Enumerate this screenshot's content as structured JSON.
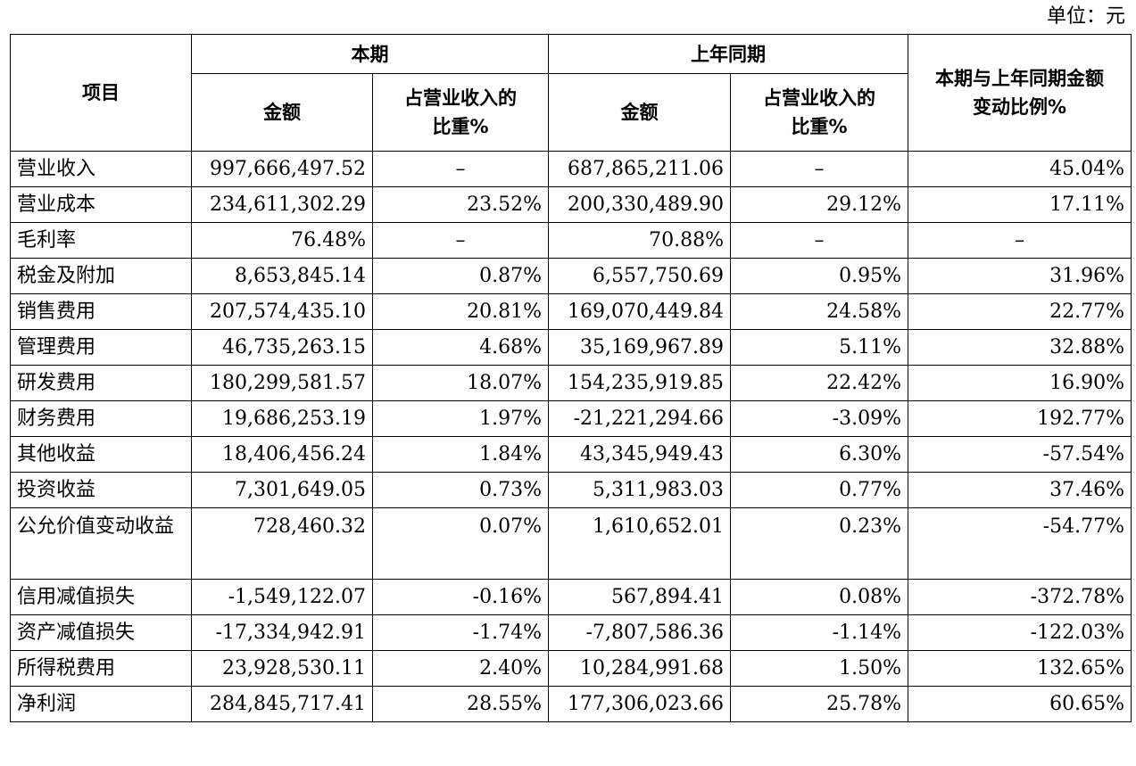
{
  "unit_label": "单位：元",
  "header": {
    "item": "项目",
    "current_period": "本期",
    "prior_period": "上年同期",
    "change": "本期与上年同期金额变动比例%",
    "amount": "金额",
    "share": "占营业收入的比重%"
  },
  "rows": [
    {
      "item": "营业收入",
      "cur_amount": "997,666,497.52",
      "cur_share": "–",
      "prev_amount": "687,865,211.06",
      "prev_share": "–",
      "change": "45.04%"
    },
    {
      "item": "营业成本",
      "cur_amount": "234,611,302.29",
      "cur_share": "23.52%",
      "prev_amount": "200,330,489.90",
      "prev_share": "29.12%",
      "change": "17.11%"
    },
    {
      "item": "毛利率",
      "cur_amount": "76.48%",
      "cur_share": "–",
      "prev_amount": "70.88%",
      "prev_share": "–",
      "change": "–"
    },
    {
      "item": "税金及附加",
      "cur_amount": "8,653,845.14",
      "cur_share": "0.87%",
      "prev_amount": "6,557,750.69",
      "prev_share": "0.95%",
      "change": "31.96%"
    },
    {
      "item": "销售费用",
      "cur_amount": "207,574,435.10",
      "cur_share": "20.81%",
      "prev_amount": "169,070,449.84",
      "prev_share": "24.58%",
      "change": "22.77%"
    },
    {
      "item": "管理费用",
      "cur_amount": "46,735,263.15",
      "cur_share": "4.68%",
      "prev_amount": "35,169,967.89",
      "prev_share": "5.11%",
      "change": "32.88%"
    },
    {
      "item": "研发费用",
      "cur_amount": "180,299,581.57",
      "cur_share": "18.07%",
      "prev_amount": "154,235,919.85",
      "prev_share": "22.42%",
      "change": "16.90%"
    },
    {
      "item": "财务费用",
      "cur_amount": "19,686,253.19",
      "cur_share": "1.97%",
      "prev_amount": "-21,221,294.66",
      "prev_share": "-3.09%",
      "change": "192.77%"
    },
    {
      "item": "其他收益",
      "cur_amount": "18,406,456.24",
      "cur_share": "1.84%",
      "prev_amount": "43,345,949.43",
      "prev_share": "6.30%",
      "change": "-57.54%"
    },
    {
      "item": "投资收益",
      "cur_amount": "7,301,649.05",
      "cur_share": "0.73%",
      "prev_amount": "5,311,983.03",
      "prev_share": "0.77%",
      "change": "37.46%"
    },
    {
      "item": "公允价值变动收益",
      "cur_amount": "728,460.32",
      "cur_share": "0.07%",
      "prev_amount": "1,610,652.01",
      "prev_share": "0.23%",
      "change": "-54.77%"
    },
    {
      "item": "信用减值损失",
      "cur_amount": "-1,549,122.07",
      "cur_share": "-0.16%",
      "prev_amount": "567,894.41",
      "prev_share": "0.08%",
      "change": "-372.78%"
    },
    {
      "item": "资产减值损失",
      "cur_amount": "-17,334,942.91",
      "cur_share": "-1.74%",
      "prev_amount": "-7,807,586.36",
      "prev_share": "-1.14%",
      "change": "-122.03%"
    },
    {
      "item": "所得税费用",
      "cur_amount": "23,928,530.11",
      "cur_share": "2.40%",
      "prev_amount": "10,284,991.68",
      "prev_share": "1.50%",
      "change": "132.65%"
    },
    {
      "item": "净利润",
      "cur_amount": "284,845,717.41",
      "cur_share": "28.55%",
      "prev_amount": "177,306,023.66",
      "prev_share": "25.78%",
      "change": "60.65%"
    }
  ]
}
